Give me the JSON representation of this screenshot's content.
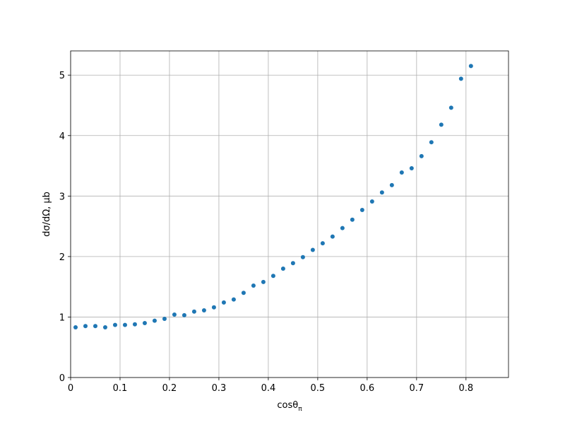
{
  "chart_data": {
    "type": "scatter",
    "xlabel": {
      "text": "cosθ",
      "sub": "π"
    },
    "ylabel": "dσ/dΩ, μb",
    "x": [
      0.01,
      0.03,
      0.05,
      0.07,
      0.09,
      0.11,
      0.13,
      0.15,
      0.17,
      0.19,
      0.21,
      0.23,
      0.25,
      0.27,
      0.29,
      0.31,
      0.33,
      0.35,
      0.37,
      0.39,
      0.41,
      0.43,
      0.45,
      0.47,
      0.49,
      0.51,
      0.53,
      0.55,
      0.57,
      0.59,
      0.61,
      0.63,
      0.65,
      0.67,
      0.69,
      0.71,
      0.73,
      0.75,
      0.77,
      0.79,
      0.81
    ],
    "values": [
      0.83,
      0.85,
      0.85,
      0.83,
      0.87,
      0.87,
      0.88,
      0.9,
      0.94,
      0.97,
      1.04,
      1.03,
      1.09,
      1.11,
      1.16,
      1.24,
      1.29,
      1.4,
      1.52,
      1.58,
      1.68,
      1.8,
      1.89,
      1.99,
      2.11,
      2.22,
      2.33,
      2.47,
      2.61,
      2.77,
      2.91,
      3.06,
      3.18,
      3.39,
      3.46,
      3.66,
      3.89,
      4.18,
      4.46,
      4.94,
      5.15
    ],
    "color": "#1f77b4",
    "xlim": [
      0,
      0.886
    ],
    "ylim": [
      0,
      5.4
    ],
    "xticks": [
      0,
      0.1,
      0.2,
      0.3,
      0.4,
      0.5,
      0.6,
      0.7,
      0.8
    ],
    "yticks": [
      0,
      1,
      2,
      3,
      4,
      5
    ],
    "grid": true
  }
}
